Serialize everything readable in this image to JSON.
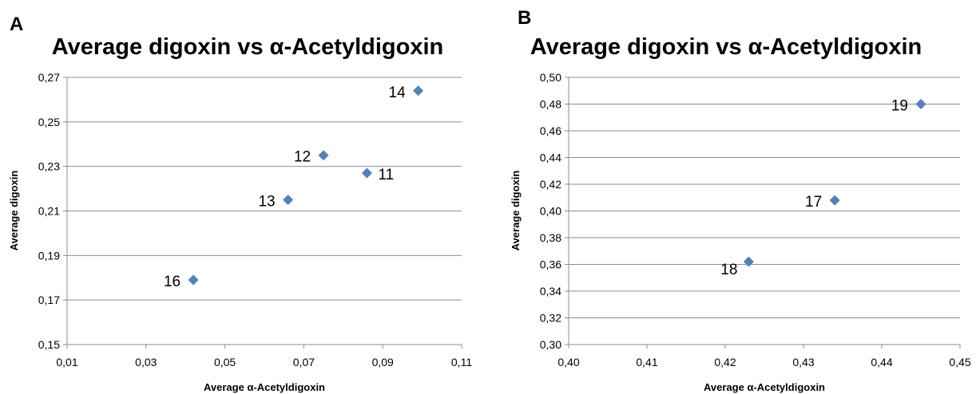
{
  "chart_data": [
    {
      "panel_letter": "A",
      "type": "scatter",
      "title": "Average digoxin vs α-Acetyldigoxin",
      "xlabel": "Average α-Acetyldigoxin",
      "ylabel": "Average digoxin",
      "xlim": [
        0.01,
        0.11
      ],
      "ylim": [
        0.15,
        0.27
      ],
      "xticks": [
        "0,01",
        "0,03",
        "0,05",
        "0,07",
        "0,09",
        "0,11"
      ],
      "yticks": [
        "0,15",
        "0,17",
        "0,19",
        "0,21",
        "0,23",
        "0,25",
        "0,27"
      ],
      "grid": "horizontal",
      "marker_color": "#4f81bd",
      "points": [
        {
          "label": "14",
          "x": 0.099,
          "y": 0.264,
          "label_side": "left"
        },
        {
          "label": "12",
          "x": 0.075,
          "y": 0.235,
          "label_side": "left"
        },
        {
          "label": "11",
          "x": 0.086,
          "y": 0.227,
          "label_side": "right"
        },
        {
          "label": "13",
          "x": 0.066,
          "y": 0.215,
          "label_side": "left"
        },
        {
          "label": "16",
          "x": 0.042,
          "y": 0.179,
          "label_side": "left"
        }
      ]
    },
    {
      "panel_letter": "B",
      "type": "scatter",
      "title": "Average digoxin vs α-Acetyldigoxin",
      "xlabel": "Average α-Acetyldigoxin",
      "ylabel": "Average digoxin",
      "xlim": [
        0.4,
        0.45
      ],
      "ylim": [
        0.3,
        0.5
      ],
      "xticks": [
        "0,40",
        "0,41",
        "0,42",
        "0,43",
        "0,44",
        "0,45"
      ],
      "yticks": [
        "0,30",
        "0,32",
        "0,34",
        "0,36",
        "0,38",
        "0,40",
        "0,42",
        "0,44",
        "0,46",
        "0,48",
        "0,50"
      ],
      "grid": "horizontal",
      "marker_color": "#4f81bd",
      "points": [
        {
          "label": "19",
          "x": 0.445,
          "y": 0.48,
          "label_side": "left"
        },
        {
          "label": "17",
          "x": 0.434,
          "y": 0.408,
          "label_side": "left"
        },
        {
          "label": "18",
          "x": 0.423,
          "y": 0.362,
          "label_side": "below-left"
        }
      ]
    }
  ]
}
